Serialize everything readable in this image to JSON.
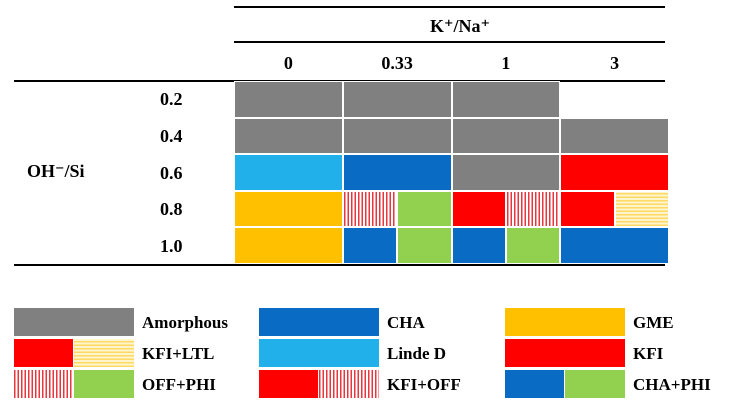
{
  "colors": {
    "Amorphous": "#808080",
    "CHA": "#0a6bc4",
    "GME": "#ffc000",
    "Linde D": "#22b0ea",
    "KFI": "#ff0000",
    "LTL": "#ffd966",
    "OFF": "#ffffff",
    "PHI": "#92d050"
  },
  "patterns": {
    "OFF": "vertical-stripes-red",
    "LTL": "horizontal-stripes-yellow"
  },
  "chart_data": {
    "type": "table",
    "column_header": "K⁺/Na⁺",
    "columns": [
      "0",
      "0.33",
      "1",
      "3"
    ],
    "row_header": "OH⁻/Si",
    "rows": [
      "0.2",
      "0.4",
      "0.6",
      "0.8",
      "1.0"
    ],
    "cells": [
      [
        [
          "Amorphous"
        ],
        [
          "Amorphous"
        ],
        [
          "Amorphous"
        ],
        []
      ],
      [
        [
          "Amorphous"
        ],
        [
          "Amorphous"
        ],
        [
          "Amorphous"
        ],
        [
          "Amorphous"
        ]
      ],
      [
        [
          "Linde D"
        ],
        [
          "CHA"
        ],
        [
          "Amorphous"
        ],
        [
          "KFI"
        ]
      ],
      [
        [
          "GME"
        ],
        [
          "OFF",
          "PHI"
        ],
        [
          "KFI",
          "OFF"
        ],
        [
          "KFI",
          "LTL"
        ]
      ],
      [
        [
          "GME"
        ],
        [
          "CHA",
          "PHI"
        ],
        [
          "CHA",
          "PHI"
        ],
        [
          "CHA"
        ]
      ]
    ]
  },
  "legend": [
    {
      "label": "Amorphous",
      "parts": [
        "Amorphous"
      ]
    },
    {
      "label": "CHA",
      "parts": [
        "CHA"
      ]
    },
    {
      "label": "GME",
      "parts": [
        "GME"
      ]
    },
    {
      "label": "KFI+LTL",
      "parts": [
        "KFI",
        "LTL"
      ]
    },
    {
      "label": "Linde D",
      "parts": [
        "Linde D"
      ]
    },
    {
      "label": "KFI",
      "parts": [
        "KFI"
      ]
    },
    {
      "label": "OFF+PHI",
      "parts": [
        "OFF",
        "PHI"
      ]
    },
    {
      "label": "KFI+OFF",
      "parts": [
        "KFI",
        "OFF"
      ]
    },
    {
      "label": "CHA+PHI",
      "parts": [
        "CHA",
        "PHI"
      ]
    }
  ]
}
